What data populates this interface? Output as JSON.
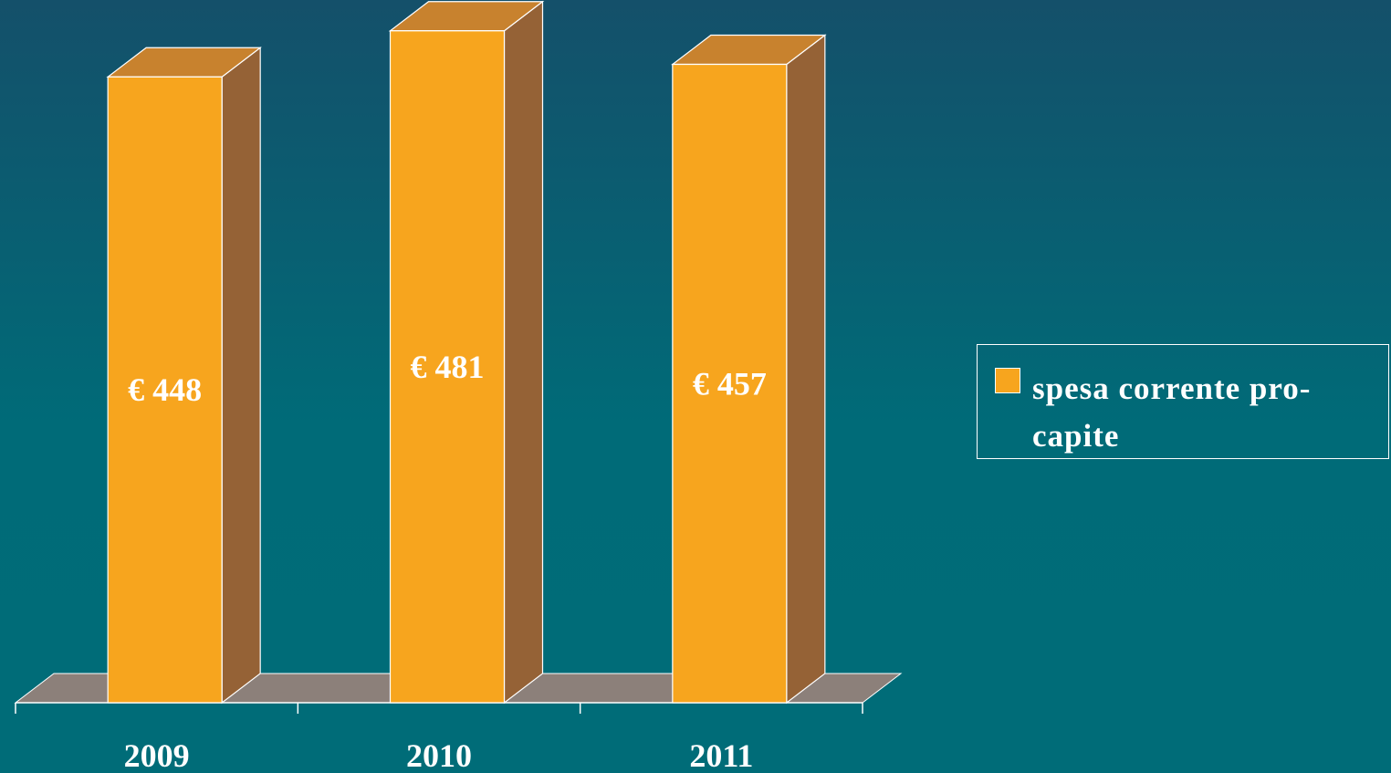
{
  "chart_data": {
    "type": "bar3d",
    "categories": [
      "2009",
      "2010",
      "2011"
    ],
    "series": [
      {
        "name": "spesa corrente pro-capite",
        "color": "#f7a51e",
        "values": [
          448,
          481,
          457
        ],
        "value_labels": [
          "€ 448",
          "€ 481",
          "€ 457"
        ]
      }
    ],
    "ylim": [
      0,
      490
    ],
    "legend": "right"
  }
}
